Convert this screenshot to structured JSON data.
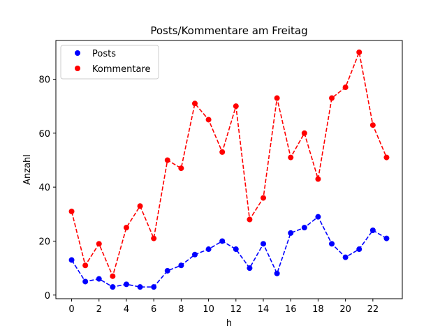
{
  "chart_data": {
    "type": "line",
    "title": "Posts/Kommentare am Freitag",
    "xlabel": "h",
    "ylabel": "Anzahl",
    "x": [
      0,
      1,
      2,
      3,
      4,
      5,
      6,
      7,
      8,
      9,
      10,
      11,
      12,
      13,
      14,
      15,
      16,
      17,
      18,
      19,
      20,
      21,
      22,
      23
    ],
    "xlim": [
      -1.15,
      24.15
    ],
    "ylim": [
      -1.35,
      94.35
    ],
    "xticks": [
      0,
      2,
      4,
      6,
      8,
      10,
      12,
      14,
      16,
      18,
      20,
      22
    ],
    "yticks": [
      0,
      20,
      40,
      60,
      80
    ],
    "grid": false,
    "legend_position": "top-left",
    "series": [
      {
        "name": "Posts",
        "color": "#0000ff",
        "values": [
          13,
          5,
          6,
          3,
          4,
          3,
          3,
          9,
          11,
          15,
          17,
          20,
          17,
          10,
          19,
          8,
          23,
          25,
          29,
          19,
          14,
          17,
          24,
          21
        ]
      },
      {
        "name": "Kommentare",
        "color": "#ff0000",
        "values": [
          31,
          11,
          19,
          7,
          25,
          33,
          21,
          50,
          47,
          71,
          65,
          53,
          70,
          28,
          36,
          73,
          51,
          60,
          43,
          73,
          77,
          90,
          63,
          51
        ]
      }
    ]
  }
}
